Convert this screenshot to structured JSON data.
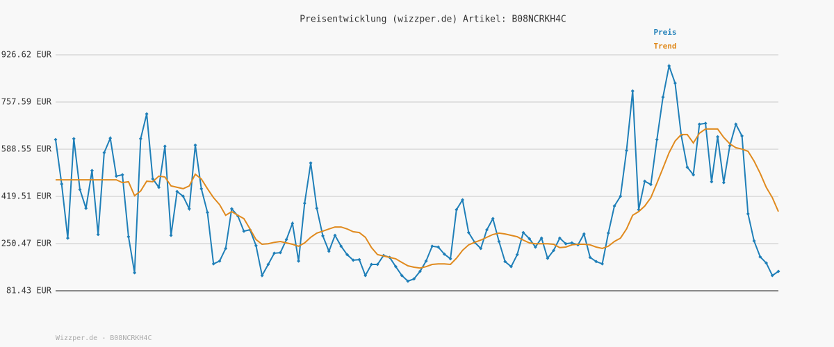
{
  "chart_data": {
    "type": "line",
    "title": "Preisentwicklung (wizzper.de) Artikel: B08NCRKH4C",
    "footer": "Wizzper.de - B08NCRKH4C",
    "ylim": [
      81.43,
      926.62
    ],
    "yticks": [
      {
        "value": 81.43,
        "label": "81.43 EUR"
      },
      {
        "value": 250.47,
        "label": "250.47 EUR"
      },
      {
        "value": 419.51,
        "label": "419.51 EUR"
      },
      {
        "value": 588.55,
        "label": "588.55 EUR"
      },
      {
        "value": 757.59,
        "label": "757.59 EUR"
      },
      {
        "value": 926.62,
        "label": "926.62 EUR"
      }
    ],
    "grid": true,
    "legend": "top-right",
    "series": [
      {
        "name": "Preis",
        "color": "#1f7fb8",
        "markers": true,
        "values": [
          623,
          464,
          270,
          626,
          444,
          377,
          512,
          283,
          576,
          628,
          492,
          497,
          275,
          146,
          626,
          715,
          482,
          452,
          599,
          280,
          437,
          420,
          375,
          603,
          447,
          362,
          178,
          188,
          233,
          375,
          350,
          295,
          300,
          243,
          136,
          176,
          216,
          218,
          265,
          323,
          188,
          395,
          539,
          377,
          278,
          223,
          280,
          241,
          211,
          191,
          193,
          136,
          176,
          176,
          208,
          201,
          168,
          136,
          116,
          124,
          151,
          188,
          241,
          238,
          213,
          196,
          372,
          407,
          290,
          255,
          233,
          300,
          340,
          258,
          186,
          168,
          211,
          290,
          268,
          238,
          270,
          198,
          226,
          270,
          250,
          253,
          246,
          285,
          201,
          186,
          178,
          288,
          385,
          420,
          584,
          797,
          372,
          474,
          462,
          623,
          775,
          887,
          825,
          638,
          524,
          497,
          678,
          681,
          472,
          633,
          469,
          601,
          678,
          636,
          357,
          260,
          203,
          181,
          136,
          151
        ]
      },
      {
        "name": "Trend",
        "color": "#e08a1e",
        "markers": false,
        "values": [
          479,
          479,
          479,
          479,
          479,
          479,
          479,
          479,
          479,
          479,
          479,
          469,
          472,
          422,
          439,
          474,
          472,
          492,
          489,
          457,
          452,
          447,
          457,
          499,
          482,
          447,
          415,
          390,
          352,
          365,
          352,
          340,
          303,
          265,
          248,
          250,
          255,
          258,
          253,
          248,
          241,
          253,
          273,
          288,
          295,
          303,
          310,
          310,
          303,
          293,
          290,
          273,
          236,
          211,
          206,
          201,
          196,
          183,
          171,
          166,
          163,
          168,
          176,
          178,
          178,
          176,
          198,
          226,
          246,
          255,
          263,
          273,
          283,
          288,
          285,
          280,
          275,
          263,
          253,
          250,
          250,
          250,
          248,
          236,
          238,
          246,
          248,
          248,
          246,
          238,
          233,
          241,
          258,
          270,
          303,
          352,
          365,
          385,
          415,
          467,
          521,
          576,
          618,
          641,
          641,
          611,
          646,
          661,
          661,
          661,
          631,
          608,
          594,
          589,
          581,
          546,
          502,
          452,
          415,
          365
        ]
      }
    ]
  }
}
